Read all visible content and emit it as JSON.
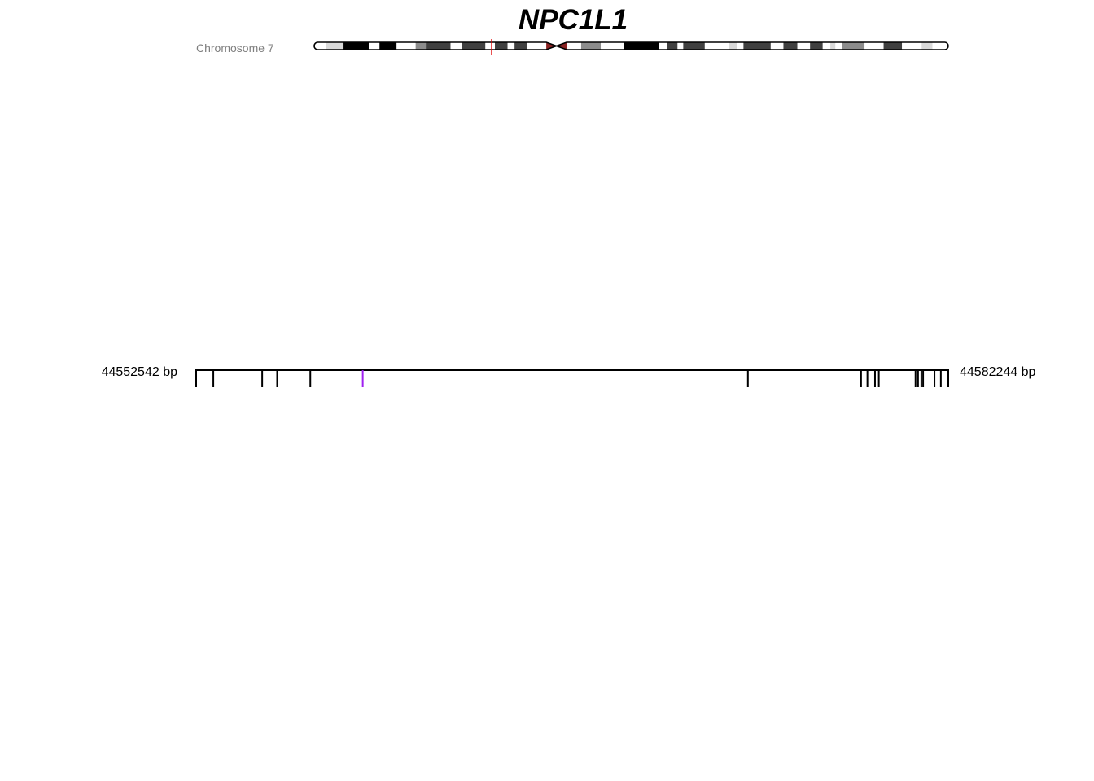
{
  "gene": {
    "symbol": "NPC1L1"
  },
  "chromosome": {
    "label": "Chromosome 7",
    "band_colors": {
      "gneg": "#ffffff",
      "gpos25": "#d9d9d9",
      "gpos50": "#8c8c8c",
      "gpos75": "#404040",
      "gpos100": "#000000",
      "acen": "#8b2323"
    },
    "bands": [
      {
        "start": 0.0,
        "end": 0.018,
        "stain": "gneg"
      },
      {
        "start": 0.018,
        "end": 0.045,
        "stain": "gpos25"
      },
      {
        "start": 0.045,
        "end": 0.086,
        "stain": "gpos100"
      },
      {
        "start": 0.086,
        "end": 0.103,
        "stain": "gneg"
      },
      {
        "start": 0.103,
        "end": 0.13,
        "stain": "gpos100"
      },
      {
        "start": 0.13,
        "end": 0.16,
        "stain": "gneg"
      },
      {
        "start": 0.16,
        "end": 0.176,
        "stain": "gpos50"
      },
      {
        "start": 0.176,
        "end": 0.215,
        "stain": "gpos75"
      },
      {
        "start": 0.215,
        "end": 0.233,
        "stain": "gneg"
      },
      {
        "start": 0.233,
        "end": 0.27,
        "stain": "gpos75"
      },
      {
        "start": 0.27,
        "end": 0.285,
        "stain": "gneg"
      },
      {
        "start": 0.285,
        "end": 0.305,
        "stain": "gpos75"
      },
      {
        "start": 0.305,
        "end": 0.316,
        "stain": "gneg"
      },
      {
        "start": 0.316,
        "end": 0.336,
        "stain": "gpos75"
      },
      {
        "start": 0.336,
        "end": 0.366,
        "stain": "gneg"
      },
      {
        "start": 0.366,
        "end": 0.382,
        "stain": "acen"
      },
      {
        "start": 0.382,
        "end": 0.398,
        "stain": "acen"
      },
      {
        "start": 0.398,
        "end": 0.421,
        "stain": "gneg"
      },
      {
        "start": 0.421,
        "end": 0.452,
        "stain": "gpos50"
      },
      {
        "start": 0.452,
        "end": 0.488,
        "stain": "gneg"
      },
      {
        "start": 0.488,
        "end": 0.544,
        "stain": "gpos100"
      },
      {
        "start": 0.544,
        "end": 0.556,
        "stain": "gneg"
      },
      {
        "start": 0.556,
        "end": 0.573,
        "stain": "gpos75"
      },
      {
        "start": 0.573,
        "end": 0.582,
        "stain": "gneg"
      },
      {
        "start": 0.582,
        "end": 0.616,
        "stain": "gpos75"
      },
      {
        "start": 0.616,
        "end": 0.654,
        "stain": "gneg"
      },
      {
        "start": 0.654,
        "end": 0.667,
        "stain": "gpos25"
      },
      {
        "start": 0.667,
        "end": 0.677,
        "stain": "gneg"
      },
      {
        "start": 0.677,
        "end": 0.72,
        "stain": "gpos75"
      },
      {
        "start": 0.72,
        "end": 0.74,
        "stain": "gneg"
      },
      {
        "start": 0.74,
        "end": 0.762,
        "stain": "gpos75"
      },
      {
        "start": 0.762,
        "end": 0.782,
        "stain": "gneg"
      },
      {
        "start": 0.782,
        "end": 0.802,
        "stain": "gpos75"
      },
      {
        "start": 0.802,
        "end": 0.814,
        "stain": "gneg"
      },
      {
        "start": 0.814,
        "end": 0.822,
        "stain": "gpos25"
      },
      {
        "start": 0.822,
        "end": 0.832,
        "stain": "gneg"
      },
      {
        "start": 0.832,
        "end": 0.868,
        "stain": "gpos50"
      },
      {
        "start": 0.868,
        "end": 0.898,
        "stain": "gneg"
      },
      {
        "start": 0.898,
        "end": 0.927,
        "stain": "gpos75"
      },
      {
        "start": 0.927,
        "end": 0.958,
        "stain": "gneg"
      },
      {
        "start": 0.958,
        "end": 0.975,
        "stain": "gpos25"
      },
      {
        "start": 0.975,
        "end": 1.0,
        "stain": "gneg"
      }
    ],
    "gene_locus_fraction": 0.28,
    "locus_marker_color": "#e00000"
  },
  "gene_model": {
    "start_label": "44552542 bp",
    "end_label": "44582244 bp",
    "start_bp": 44552542,
    "end_bp": 44582244,
    "line_color": "#000000",
    "highlight_color": "#a020f0",
    "exon_ticks_bp": [
      44552542,
      44553220,
      44555150,
      44555740,
      44557050,
      44574330,
      44578800,
      44579050,
      44579350,
      44579500,
      44580950,
      44581050,
      44581180,
      44581250,
      44581700,
      44581950,
      44582244
    ],
    "highlight_ticks_bp": [
      44559120
    ]
  }
}
